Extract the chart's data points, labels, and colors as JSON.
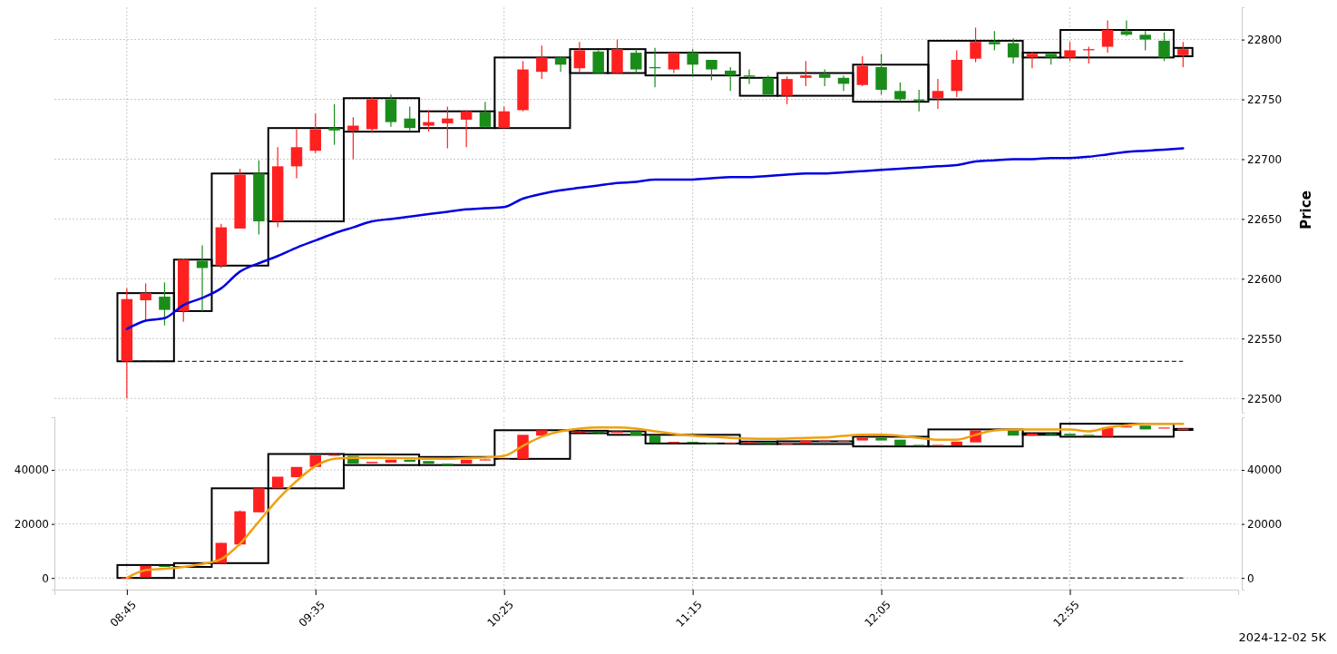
{
  "chart_data": [
    {
      "type": "candlestick",
      "ylabel": "Price",
      "grid": true,
      "tick_labels": "y",
      "xlim": [
        8.43,
        13.66
      ],
      "ylim": [
        22488,
        22827
      ],
      "xticks": [
        {
          "value": 8.75,
          "label": null
        },
        {
          "value": 9.5833,
          "label": null
        },
        {
          "value": 10.4167,
          "label": null
        },
        {
          "value": 11.25,
          "label": null
        },
        {
          "value": 12.0833,
          "label": null
        },
        {
          "value": 12.9167,
          "label": null
        }
      ],
      "yticks": [
        22500,
        22550,
        22600,
        22650,
        22700,
        22750,
        22800
      ],
      "x": [
        8.75,
        8.8333,
        8.9167,
        9,
        9.0833,
        9.1667,
        9.25,
        9.3333,
        9.4167,
        9.5,
        9.5833,
        9.6667,
        9.75,
        9.8333,
        9.9167,
        10,
        10.0833,
        10.1667,
        10.25,
        10.3333,
        10.4167,
        10.5,
        10.5833,
        10.6667,
        10.75,
        10.8333,
        10.9167,
        11,
        11.0833,
        11.1667,
        11.25,
        11.3333,
        11.4167,
        11.5,
        11.5833,
        11.6667,
        11.75,
        11.8333,
        11.9167,
        12,
        12.0833,
        12.1667,
        12.25,
        12.3333,
        12.4167,
        12.5,
        12.5833,
        12.6667,
        12.75,
        12.8333,
        12.9167,
        13,
        13.0833,
        13.1667,
        13.25,
        13.3333,
        13.4167
      ],
      "ohlc": [
        [
          22531,
          22592,
          22500,
          22583
        ],
        [
          22582,
          22596,
          22565,
          22588
        ],
        [
          22585,
          22597,
          22561,
          22574
        ],
        [
          22573,
          22617,
          22564,
          22616
        ],
        [
          22615,
          22628,
          22573,
          22609
        ],
        [
          22611,
          22646,
          22609,
          22643
        ],
        [
          22642,
          22692,
          22642,
          22687
        ],
        [
          22688,
          22699,
          22637,
          22648
        ],
        [
          22648,
          22710,
          22643,
          22694
        ],
        [
          22694,
          22725,
          22684,
          22710
        ],
        [
          22707,
          22738,
          22705,
          22725
        ],
        [
          22726,
          22746,
          22712,
          22724
        ],
        [
          22724,
          22735,
          22700,
          22728
        ],
        [
          22725,
          22752,
          22722,
          22750
        ],
        [
          22750,
          22754,
          22727,
          22731
        ],
        [
          22734,
          22744,
          22724,
          22726
        ],
        [
          22728,
          22741,
          22723,
          22731
        ],
        [
          22730,
          22744,
          22709,
          22734
        ],
        [
          22733,
          22741,
          22710,
          22740
        ],
        [
          22739,
          22748,
          22726,
          22727
        ],
        [
          22726,
          22744,
          22726,
          22740
        ],
        [
          22741,
          22782,
          22740,
          22775
        ],
        [
          22773,
          22795,
          22767,
          22785
        ],
        [
          22785,
          22786,
          22773,
          22779
        ],
        [
          22776,
          22798,
          22773,
          22791
        ],
        [
          22790,
          22791,
          22772,
          22772
        ],
        [
          22772,
          22800,
          22771,
          22792
        ],
        [
          22789,
          22792,
          22772,
          22775
        ],
        [
          22777,
          22793,
          22760,
          22776
        ],
        [
          22775,
          22789,
          22772,
          22789
        ],
        [
          22789,
          22792,
          22770,
          22779
        ],
        [
          22783,
          22783,
          22766,
          22775
        ],
        [
          22774,
          22777,
          22757,
          22770
        ],
        [
          22770,
          22775,
          22763,
          22769
        ],
        [
          22768,
          22770,
          22754,
          22754
        ],
        [
          22753,
          22769,
          22746,
          22767
        ],
        [
          22768,
          22782,
          22761,
          22770
        ],
        [
          22771,
          22775,
          22761,
          22768
        ],
        [
          22768,
          22770,
          22757,
          22763
        ],
        [
          22762,
          22786,
          22761,
          22778
        ],
        [
          22777,
          22788,
          22754,
          22758
        ],
        [
          22757,
          22764,
          22748,
          22750
        ],
        [
          22750,
          22758,
          22740,
          22749
        ],
        [
          22751,
          22767,
          22742,
          22757
        ],
        [
          22757,
          22791,
          22752,
          22783
        ],
        [
          22784,
          22810,
          22781,
          22798
        ],
        [
          22798,
          22807,
          22791,
          22796
        ],
        [
          22797,
          22801,
          22780,
          22785
        ],
        [
          22785,
          22790,
          22776,
          22788
        ],
        [
          22788,
          22789,
          22779,
          22785
        ],
        [
          22785,
          22798,
          22782,
          22791
        ],
        [
          22791,
          22794,
          22780,
          22792
        ],
        [
          22794,
          22816,
          22789,
          22808
        ],
        [
          22807,
          22816,
          22803,
          22804
        ],
        [
          22804,
          22807,
          22791,
          22800
        ],
        [
          22799,
          22806,
          22782,
          22785
        ],
        [
          22787,
          22798,
          22777,
          22792
        ]
      ],
      "colors": [
        "#ff2020",
        "#ff2020",
        "#1a8c1a",
        "#ff2020",
        "#1a8c1a",
        "#ff2020",
        "#ff2020",
        "#1a8c1a",
        "#ff2020",
        "#ff2020",
        "#ff2020",
        "#1a8c1a",
        "#ff2020",
        "#ff2020",
        "#1a8c1a",
        "#1a8c1a",
        "#ff2020",
        "#ff2020",
        "#ff2020",
        "#1a8c1a",
        "#ff2020",
        "#ff2020",
        "#ff2020",
        "#1a8c1a",
        "#ff2020",
        "#1a8c1a",
        "#ff2020",
        "#1a8c1a",
        "#1a8c1a",
        "#ff2020",
        "#1a8c1a",
        "#1a8c1a",
        "#1a8c1a",
        "#1a8c1a",
        "#1a8c1a",
        "#ff2020",
        "#ff2020",
        "#1a8c1a",
        "#1a8c1a",
        "#ff2020",
        "#1a8c1a",
        "#1a8c1a",
        "#1a8c1a",
        "#ff2020",
        "#ff2020",
        "#ff2020",
        "#1a8c1a",
        "#1a8c1a",
        "#ff2020",
        "#1a8c1a",
        "#ff2020",
        "#ff2020",
        "#ff2020",
        "#1a8c1a",
        "#1a8c1a",
        "#1a8c1a",
        "#ff2020"
      ],
      "series": [
        {
          "type": "bar",
          "color": "#000000",
          "x": [
            8.8333,
            9.0417,
            9.25,
            9.5417,
            9.875,
            10.2083,
            10.5417,
            10.7917,
            10.9583,
            11.25,
            11.5417,
            11.7917,
            12.125,
            12.5,
            12.7917,
            13.125,
            13.4167
          ],
          "base": [
            22531,
            22573,
            22611,
            22648,
            22723,
            22726,
            22726,
            22772,
            22772,
            22770,
            22753,
            22753,
            22748,
            22750,
            22785,
            22785,
            22786
          ],
          "values": [
            57,
            43,
            77,
            78,
            28,
            14,
            59,
            20,
            20,
            19,
            15,
            19,
            31,
            49,
            4,
            23,
            7
          ]
        },
        {
          "type": "line",
          "color": "#0000e0",
          "values": [
            22558,
            22565,
            22567,
            22578,
            22584,
            22592,
            22606,
            22613,
            22619,
            22626,
            22632,
            22638,
            22643,
            22648,
            22650,
            22652,
            22654,
            22656,
            22658,
            22659,
            22660,
            22667,
            22671,
            22674,
            22676,
            22678,
            22680,
            22681,
            22683,
            22683,
            22683,
            22684,
            22685,
            22685,
            22686,
            22687,
            22688,
            22688,
            22689,
            22690,
            22691,
            22692,
            22693,
            22694,
            22695,
            22698,
            22699,
            22700,
            22700,
            22701,
            22701,
            22702,
            22704,
            22706,
            22707,
            22708,
            22709
          ]
        }
      ],
      "ref_lines": [
        {
          "axis": "y",
          "value": 22531,
          "color": "#000000",
          "line_style": "dashed"
        }
      ]
    },
    {
      "type": "candlestick",
      "grid": true,
      "xlim": [
        8.43,
        13.66
      ],
      "ylim": [
        -4300,
        59500
      ],
      "y2lim": [
        -4300,
        59500
      ],
      "xticks": [
        {
          "value": 8.75,
          "label": "08:45"
        },
        {
          "value": 9.5833,
          "label": "09:35"
        },
        {
          "value": 10.4167,
          "label": "10:25"
        },
        {
          "value": 11.25,
          "label": "11:15"
        },
        {
          "value": 12.0833,
          "label": "12:05"
        },
        {
          "value": 12.9167,
          "label": "12:55"
        }
      ],
      "yticks": [
        0,
        20000,
        40000
      ],
      "y2ticks": [
        0,
        20000,
        40000
      ],
      "x": [
        8.75,
        8.8333,
        8.9167,
        9,
        9.0833,
        9.1667,
        9.25,
        9.3333,
        9.4167,
        9.5,
        9.5833,
        9.6667,
        9.75,
        9.8333,
        9.9167,
        10,
        10.0833,
        10.1667,
        10.25,
        10.3333,
        10.4167,
        10.5,
        10.5833,
        10.6667,
        10.75,
        10.8333,
        10.9167,
        11,
        11.0833,
        11.1667,
        11.25,
        11.3333,
        11.4167,
        11.5,
        11.5833,
        11.6667,
        11.75,
        11.8333,
        11.9167,
        12,
        12.0833,
        12.1667,
        12.25,
        12.3333,
        12.4167,
        12.5,
        12.5833,
        12.6667,
        12.75,
        12.8333,
        12.9167,
        13,
        13.0833,
        13.1667,
        13.25,
        13.3333,
        13.4167
      ],
      "ohlc": [
        [
          0,
          200,
          0,
          200
        ],
        [
          200,
          4500,
          200,
          4500
        ],
        [
          4500,
          4500,
          4200,
          4200
        ],
        null,
        null,
        [
          5500,
          13000,
          5400,
          13000
        ],
        [
          12400,
          25000,
          12000,
          24700
        ],
        [
          24300,
          33200,
          24300,
          33200
        ],
        [
          33200,
          37500,
          33200,
          37500
        ],
        [
          37300,
          41100,
          37300,
          41100
        ],
        [
          41100,
          45400,
          41100,
          45400
        ],
        [
          45400,
          45900,
          45400,
          45600
        ],
        [
          45200,
          45200,
          42300,
          42300
        ],
        [
          42500,
          43000,
          42500,
          43000
        ],
        [
          42700,
          43800,
          42700,
          43800
        ],
        [
          43800,
          43800,
          43000,
          43000
        ],
        [
          43300,
          43300,
          42300,
          42300
        ],
        [
          42300,
          42300,
          41800,
          41800
        ],
        [
          42300,
          43800,
          42300,
          43800
        ],
        [
          43800,
          44100,
          43800,
          43900
        ],
        [
          43900,
          44100,
          43900,
          44100
        ],
        [
          44100,
          53000,
          44100,
          53000
        ],
        [
          52700,
          54700,
          52700,
          54700
        ],
        null,
        [
          53900,
          54500,
          53600,
          54200
        ],
        [
          54200,
          54200,
          53600,
          53700
        ],
        [
          53700,
          54300,
          53700,
          54300
        ],
        [
          54300,
          54300,
          52700,
          52700
        ],
        [
          52700,
          52700,
          50000,
          50000
        ],
        [
          50000,
          50400,
          50000,
          50400
        ],
        [
          50400,
          50400,
          50000,
          50000
        ],
        [
          50000,
          50000,
          49800,
          49900
        ],
        [
          49900,
          50200,
          49900,
          50100
        ],
        [
          50100,
          50500,
          50100,
          50300
        ],
        [
          50300,
          50300,
          49600,
          49700
        ],
        [
          49700,
          50000,
          49600,
          49900
        ],
        [
          49700,
          50900,
          49700,
          50900
        ],
        [
          50500,
          50900,
          50500,
          50900
        ],
        [
          50500,
          50900,
          50500,
          50800
        ],
        [
          50900,
          51900,
          50900,
          51900
        ],
        [
          51900,
          51900,
          50900,
          50900
        ],
        [
          51200,
          51200,
          49100,
          49100
        ],
        [
          49300,
          49300,
          48900,
          48900
        ],
        [
          48900,
          49300,
          48900,
          49300
        ],
        [
          49100,
          50500,
          49100,
          50500
        ],
        [
          50200,
          54600,
          50200,
          54600
        ],
        null,
        [
          54600,
          54600,
          52700,
          52700
        ],
        [
          52700,
          53600,
          52700,
          53500
        ],
        [
          53500,
          53600,
          53000,
          53000
        ],
        [
          53400,
          53400,
          52700,
          52700
        ],
        [
          53000,
          53000,
          52600,
          52600
        ],
        [
          52300,
          55700,
          52300,
          55700
        ],
        [
          55700,
          56100,
          55700,
          56100
        ],
        [
          56400,
          56400,
          55000,
          55000
        ],
        [
          55300,
          55700,
          55300,
          55700
        ],
        [
          54700,
          55300,
          54700,
          55300
        ]
      ],
      "colors": [
        "#ff2020",
        "#ff2020",
        "#1a8c1a",
        null,
        null,
        "#ff2020",
        "#ff2020",
        "#ff2020",
        "#ff2020",
        "#ff2020",
        "#ff2020",
        "#ff2020",
        "#1a8c1a",
        "#ff2020",
        "#ff2020",
        "#1a8c1a",
        "#1a8c1a",
        "#1a8c1a",
        "#ff2020",
        "#ff2020",
        "#ff2020",
        "#ff2020",
        "#ff2020",
        null,
        "#ff2020",
        "#1a8c1a",
        "#ff2020",
        "#1a8c1a",
        "#1a8c1a",
        "#ff2020",
        "#1a8c1a",
        "#1a8c1a",
        "#ff2020",
        "#ff2020",
        "#1a8c1a",
        "#ff2020",
        "#ff2020",
        "#ff2020",
        "#ff2020",
        "#ff2020",
        "#1a8c1a",
        "#1a8c1a",
        "#1a8c1a",
        "#ff2020",
        "#ff2020",
        "#ff2020",
        null,
        "#1a8c1a",
        "#ff2020",
        "#1a8c1a",
        "#1a8c1a",
        "#1a8c1a",
        "#ff2020",
        "#ff2020",
        "#1a8c1a",
        "#ff2020",
        "#ff2020"
      ],
      "series": [
        {
          "type": "bar",
          "color": "#000000",
          "x": [
            8.8333,
            9.0417,
            9.25,
            9.5417,
            9.875,
            10.2083,
            10.5417,
            10.7917,
            10.9583,
            11.25,
            11.5417,
            11.7917,
            12.125,
            12.5,
            12.7917,
            13.125,
            13.4167
          ],
          "base": [
            0,
            4100,
            5500,
            33200,
            41800,
            41800,
            44100,
            53600,
            53000,
            49800,
            49600,
            49600,
            48700,
            48700,
            53000,
            52300,
            54800
          ],
          "values": [
            4800,
            1400,
            27700,
            12700,
            3900,
            3000,
            10600,
            900,
            1300,
            3200,
            900,
            1000,
            3600,
            6300,
            600,
            4800,
            400
          ]
        },
        {
          "type": "line",
          "color": "#f0a010",
          "values": [
            0,
            2900,
            3400,
            4100,
            5200,
            7000,
            12700,
            20900,
            29100,
            35900,
            41400,
            44100,
            44500,
            44500,
            44400,
            44400,
            44100,
            44100,
            44400,
            44600,
            45200,
            48900,
            52300,
            54300,
            55300,
            55700,
            55700,
            55300,
            54300,
            53400,
            52700,
            52300,
            51900,
            51600,
            51500,
            51600,
            51900,
            52000,
            52600,
            53000,
            53000,
            52600,
            51900,
            51200,
            51200,
            53000,
            54600,
            55000,
            55000,
            55000,
            55000,
            54300,
            55700,
            56600,
            57100,
            57100,
            57100
          ]
        }
      ],
      "ref_lines": [
        {
          "axis": "y",
          "value": 0,
          "color": "#000000",
          "line_style": "dashed"
        }
      ],
      "annotations": [
        "2024-12-02 5K"
      ]
    }
  ]
}
